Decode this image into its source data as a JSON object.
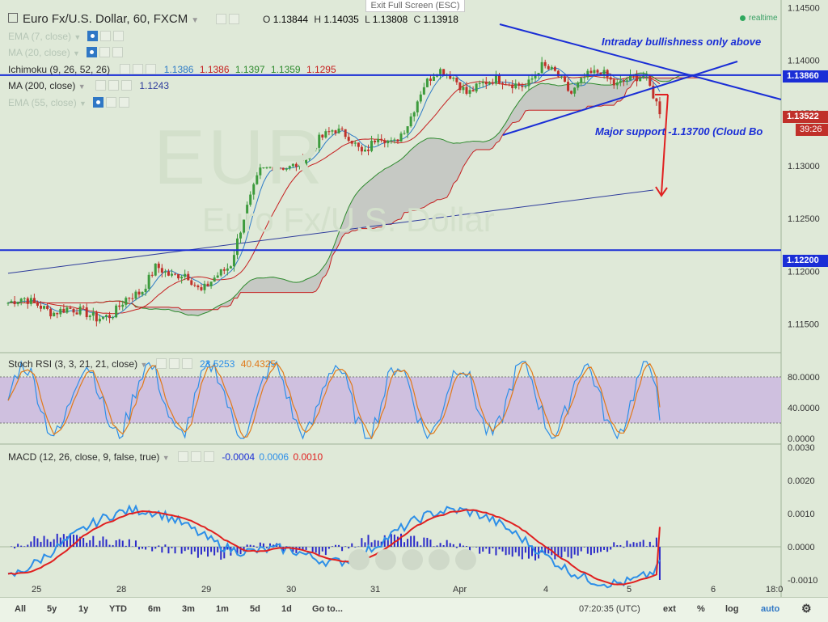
{
  "header": {
    "title": "Euro Fx/U.S. Dollar, 60, FXCM",
    "ohlc": [
      {
        "label": "O",
        "value": "1.13844"
      },
      {
        "label": "H",
        "value": "1.14035"
      },
      {
        "label": "L",
        "value": "1.13808"
      },
      {
        "label": "C",
        "value": "1.13918"
      }
    ],
    "exit_fullscreen": "Exit Full Screen (ESC)",
    "realtime": "realtime"
  },
  "indicators": [
    {
      "label": "EMA (7, close)",
      "values": [],
      "visible": false
    },
    {
      "label": "MA (20, close)",
      "values": [],
      "visible": false
    },
    {
      "label": "Ichimoku (9, 26, 52, 26)",
      "values": [
        {
          "v": "1.1386",
          "color": "#2e7cc7"
        },
        {
          "v": "1.1386",
          "color": "#c62020"
        },
        {
          "v": "1.1397",
          "color": "#2d8a2d"
        },
        {
          "v": "1.1359",
          "color": "#2d8a2d"
        },
        {
          "v": "1.1295",
          "color": "#c62020"
        }
      ],
      "visible": true
    },
    {
      "label": "MA (200, close)",
      "values": [
        {
          "v": "1.1243",
          "color": "#2e3c9c"
        }
      ],
      "visible": true
    },
    {
      "label": "EMA (55, close)",
      "values": [],
      "visible": false
    }
  ],
  "annotations": {
    "bullish": "Intraday bullishness only above",
    "support": "Major support -1.13700 (Cloud Bo"
  },
  "price_labels": {
    "resistance": "1.13860",
    "current": "1.13522",
    "countdown": "39:26",
    "support": "1.12200"
  },
  "stoch": {
    "label": "Stoch RSI (3, 3, 21, 21, close)",
    "v1": "23.5253",
    "v2": "40.4325",
    "ticks": [
      "80.0000",
      "40.0000",
      "0.0000"
    ]
  },
  "macd": {
    "label": "MACD (12, 26, close, 9, false, true)",
    "v1": "-0.0004",
    "v2": "0.0006",
    "v3": "0.0010",
    "ticks": [
      "0.0030",
      "0.0020",
      "0.0010",
      "0.0000",
      "-0.0010"
    ]
  },
  "x_axis": [
    "25",
    "28",
    "29",
    "30",
    "31",
    "Apr",
    "4",
    "5",
    "6",
    "18:0"
  ],
  "bottom_bar": {
    "ranges": [
      "All",
      "5y",
      "1y",
      "YTD",
      "6m",
      "3m",
      "1m",
      "5d",
      "1d"
    ],
    "goto": "Go to...",
    "time": "07:20:35 (UTC)",
    "ext": "ext",
    "pct": "%",
    "log": "log",
    "auto": "auto"
  },
  "watermark": {
    "symbol": "EUR",
    "line2": "Euro Fx/U.S. Dollar"
  },
  "colors": {
    "background": "#dfe9d8",
    "up_candle": "#3d9b3d",
    "down_candle": "#c0302a",
    "trend_lines": "#1a2ed6",
    "arrow": "#e02020",
    "macd_line": "#2d8fe8",
    "signal_line": "#e02020",
    "histogram": "#2b2bc9",
    "stoch_band": "#cfc0df"
  },
  "chart_data": [
    {
      "type": "candlestick",
      "title": "Euro Fx/U.S. Dollar, 60, FXCM",
      "ylim": [
        1.1135,
        1.1455
      ],
      "y_ticks": [
        "1.14500",
        "1.14000",
        "1.13500",
        "1.13000",
        "1.12500",
        "1.12000",
        "1.11500"
      ],
      "horizontal_levels": [
        1.1386,
        1.122
      ],
      "x_labels": [
        "25",
        "28",
        "29",
        "30",
        "31",
        "Apr",
        "4",
        "5",
        "6",
        "18:0"
      ],
      "close_path": [
        1.117,
        1.1175,
        1.1168,
        1.116,
        1.1165,
        1.1162,
        1.1155,
        1.1158,
        1.1175,
        1.118,
        1.1205,
        1.1195,
        1.1198,
        1.118,
        1.1195,
        1.1205,
        1.1255,
        1.1295,
        1.13,
        1.1298,
        1.1305,
        1.1325,
        1.1335,
        1.1328,
        1.131,
        1.133,
        1.132,
        1.134,
        1.1375,
        1.1392,
        1.1385,
        1.1368,
        1.1378,
        1.1383,
        1.1378,
        1.1375,
        1.1395,
        1.1388,
        1.1368,
        1.1385,
        1.139,
        1.1376,
        1.1383,
        1.1386,
        1.1352
      ],
      "series": [
        {
          "name": "MA (200, close)",
          "points": [
            [
              0,
              1.1198
            ],
            [
              44,
              1.1277
            ]
          ]
        },
        {
          "name": "Stoch RSI K",
          "last": 23.5253
        },
        {
          "name": "Stoch RSI D",
          "last": 40.4325
        },
        {
          "name": "MACD",
          "last": -0.0004
        },
        {
          "name": "Signal",
          "last": 0.0006
        },
        {
          "name": "Histogram",
          "last": 0.001
        }
      ]
    }
  ]
}
